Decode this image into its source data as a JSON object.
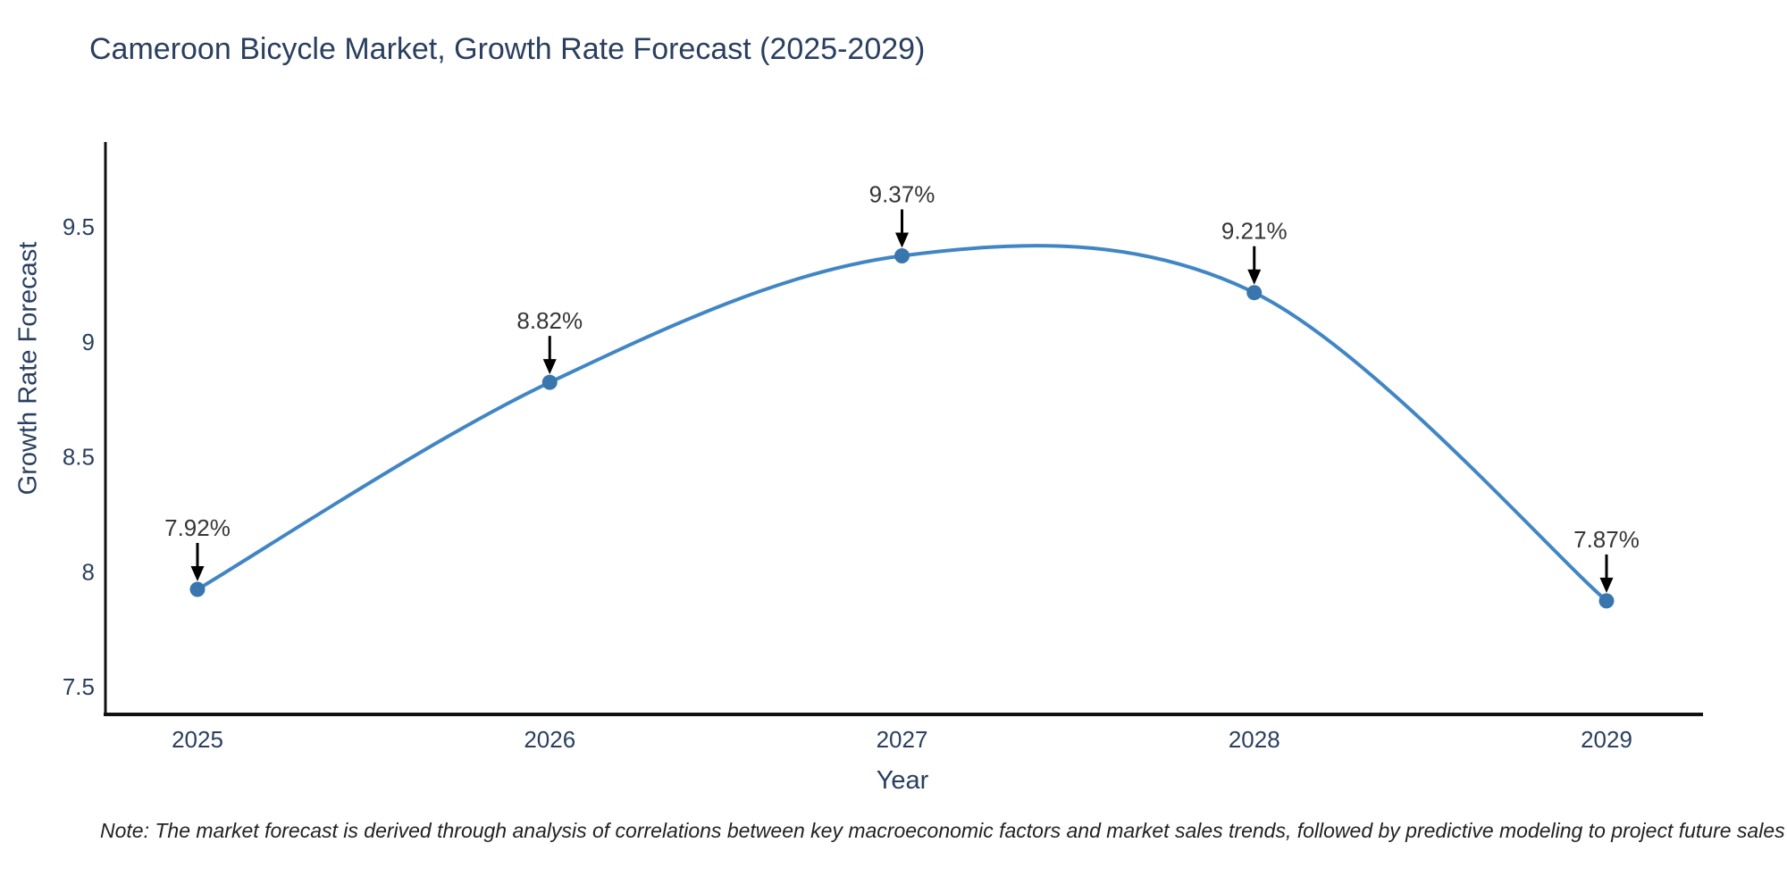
{
  "header": {
    "title": "Cameroon Bicycle Market, Growth Rate Forecast (2025-2029)"
  },
  "footnote": {
    "text": "Note: The market forecast is derived through analysis of correlations between key macroeconomic factors and market sales trends, followed by predictive modeling to project future sales"
  },
  "chart_data": {
    "type": "line",
    "line_shape": "spline",
    "title": "Cameroon Bicycle Market, Growth Rate Forecast (2025-2029)",
    "xlabel": "Year",
    "ylabel": "Growth Rate Forecast",
    "x": [
      2025,
      2026,
      2027,
      2028,
      2029
    ],
    "values": [
      7.92,
      8.82,
      9.37,
      9.21,
      7.87
    ],
    "point_labels": [
      "7.92%",
      "8.82%",
      "9.37%",
      "9.21%",
      "7.87%"
    ],
    "x_tick_labels": [
      "2025",
      "2026",
      "2027",
      "2028",
      "2029"
    ],
    "y_ticks": [
      7.5,
      8,
      8.5,
      9,
      9.5
    ],
    "y_tick_labels": [
      "7.5",
      "8",
      "8.5",
      "9",
      "9.5"
    ],
    "ylim": [
      7.38,
      9.86
    ],
    "xlim": [
      2024.73,
      2029.27
    ],
    "grid": false,
    "legend": "none",
    "annotation_style": "down-arrow-to-point",
    "colors": {
      "line": "#4186c4",
      "marker": "#3a76ae",
      "axis": "#111111",
      "tick_text": "#2a3f5f",
      "annotation_text": "#363636",
      "arrow": "#000000",
      "background": "#ffffff"
    }
  }
}
